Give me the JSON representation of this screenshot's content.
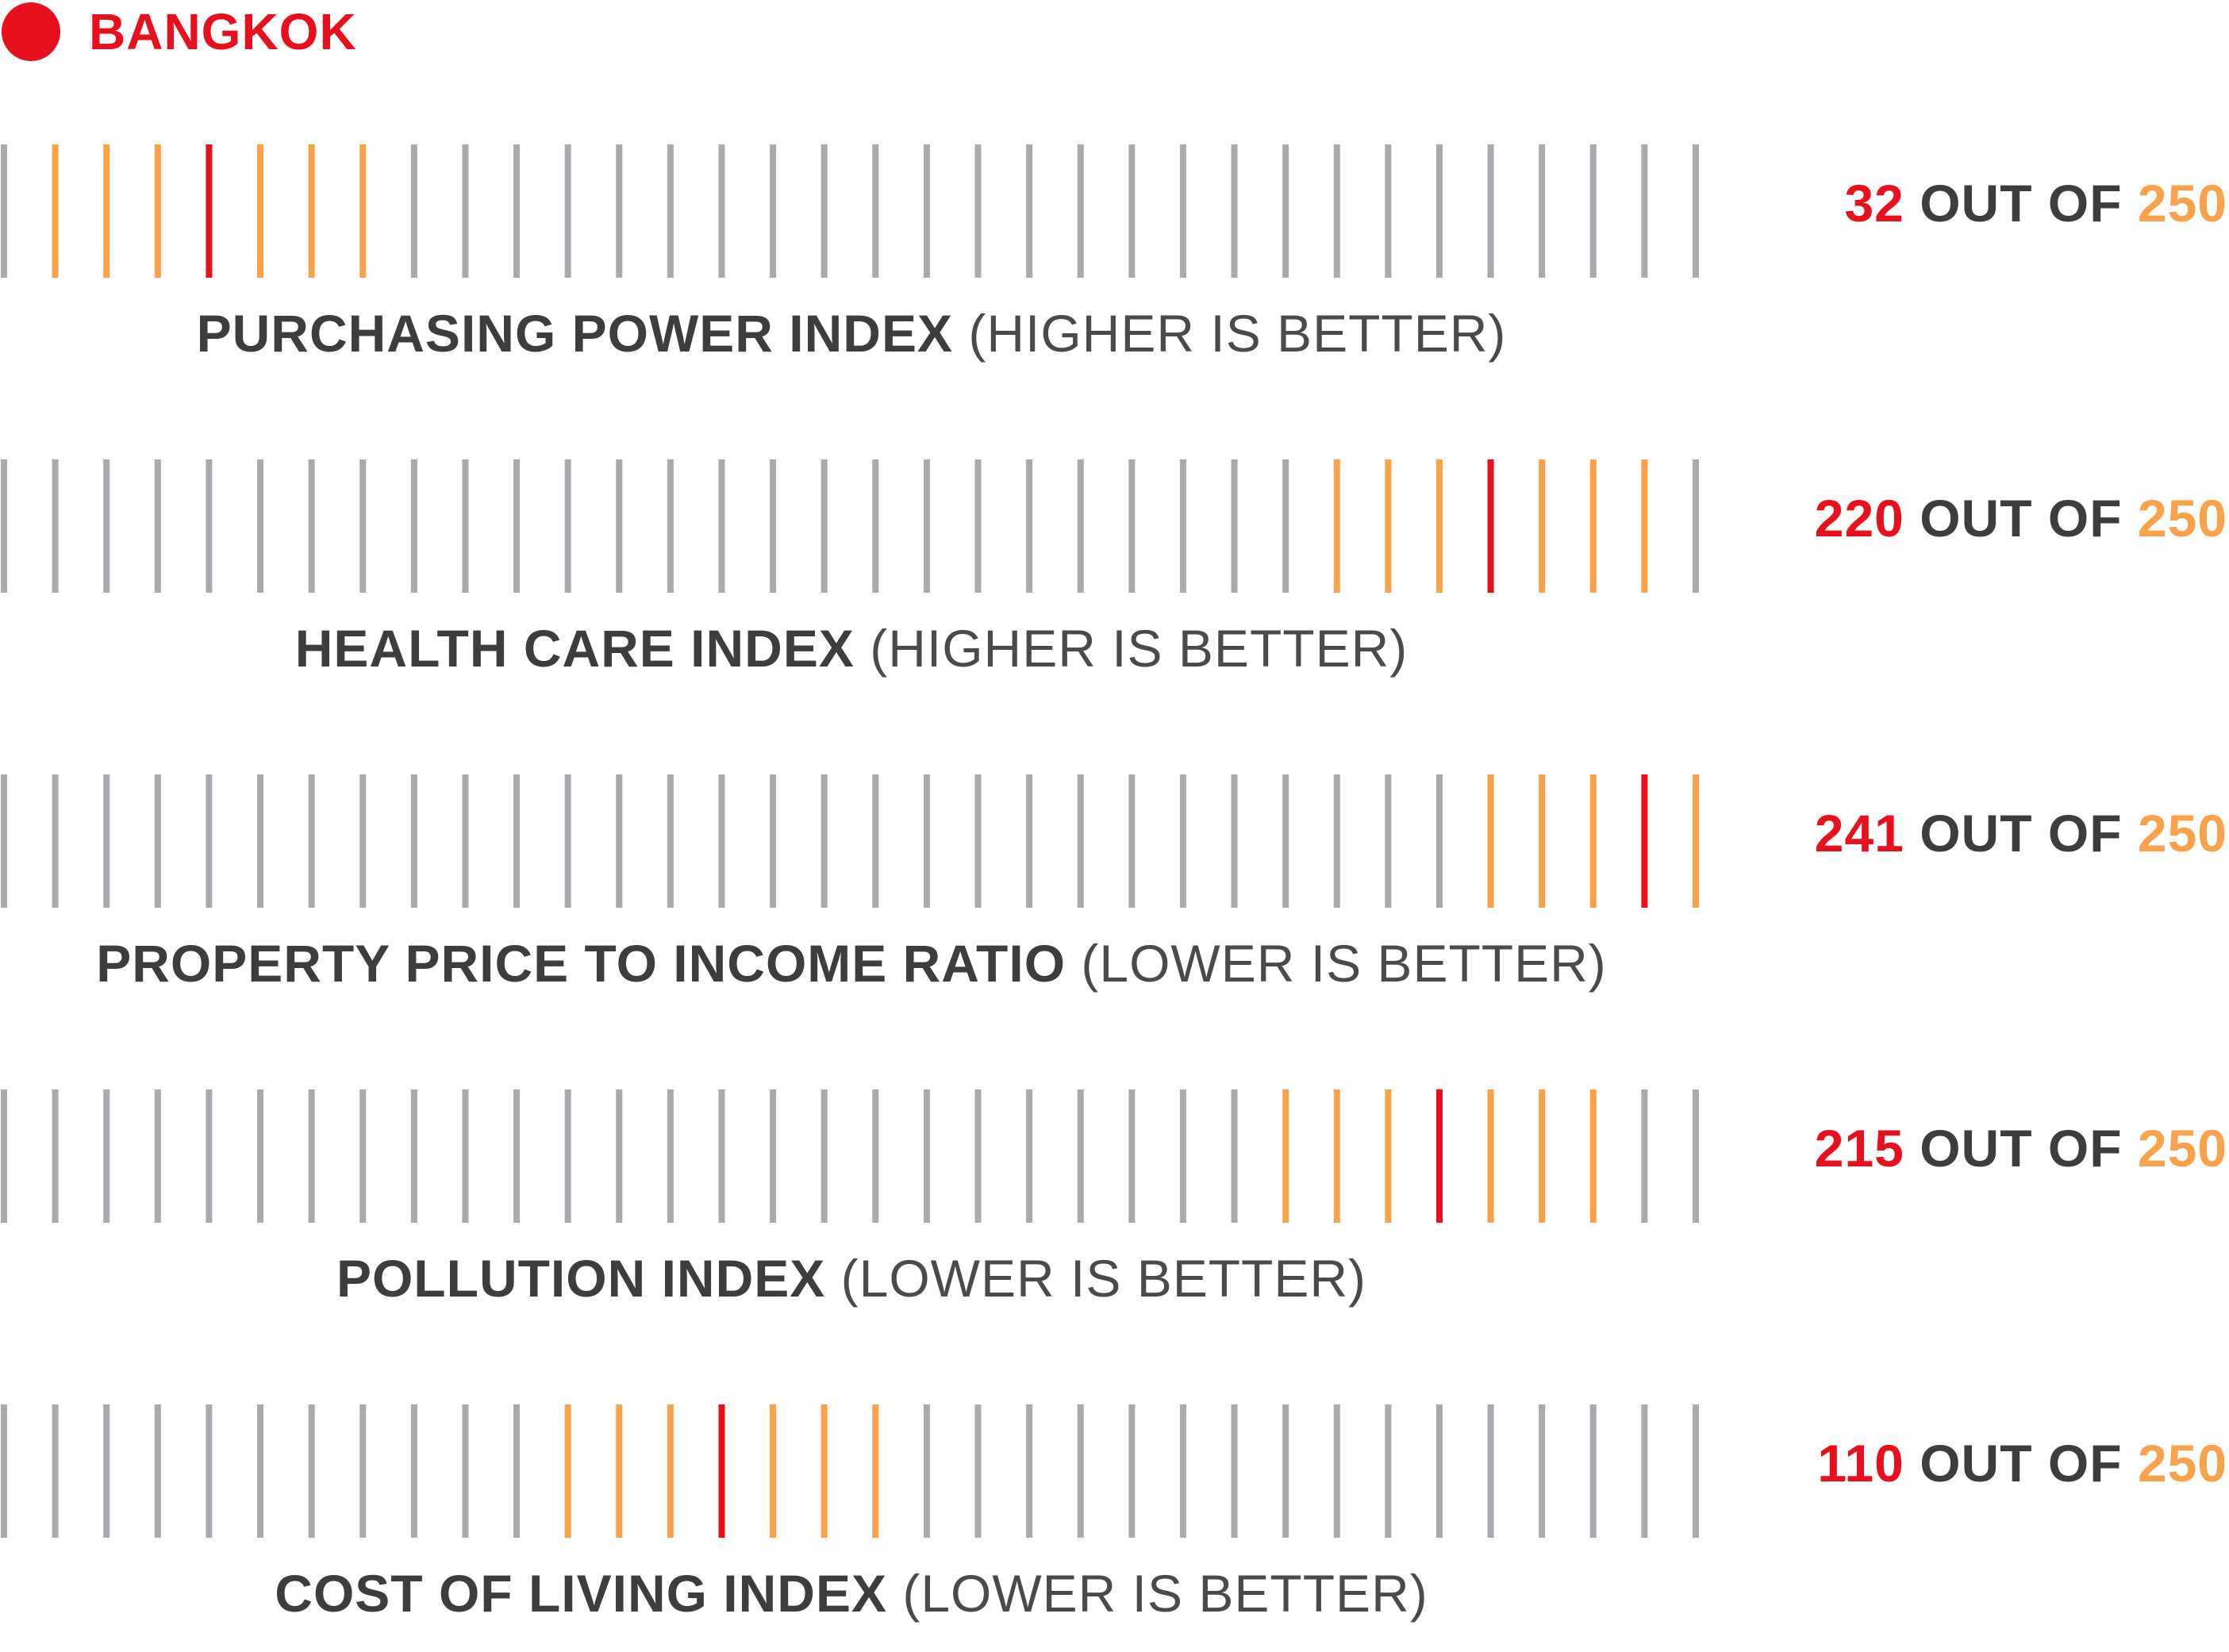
{
  "city": {
    "name": "BANGKOK"
  },
  "colors": {
    "tick_default": "#a9a9ae",
    "tick_neighborhood": "#f9a24b",
    "tick_highlight": "#e8101c",
    "label_dark": "#3d3d3f",
    "label_light": "#4a4a4c",
    "rank_value": "#e8101c",
    "rank_total": "#f9a24b"
  },
  "chart_data": {
    "type": "rank-strip",
    "total": 250,
    "tick_count": 34,
    "rows": [
      {
        "metric": "PURCHASING POWER INDEX",
        "note": "(HIGHER IS BETTER)",
        "rank": 32,
        "rank_text": "32",
        "mid_text": "OUT OF",
        "total_text": "250"
      },
      {
        "metric": "HEALTH CARE INDEX",
        "note": "(HIGHER IS BETTER)",
        "rank": 220,
        "rank_text": "220",
        "mid_text": "OUT OF",
        "total_text": "250"
      },
      {
        "metric": "PROPERTY PRICE TO INCOME RATIO",
        "note": "(LOWER IS BETTER)",
        "rank": 241,
        "rank_text": "241",
        "mid_text": "OUT OF",
        "total_text": "250"
      },
      {
        "metric": "POLLUTION INDEX",
        "note": "(LOWER IS BETTER)",
        "rank": 215,
        "rank_text": "215",
        "mid_text": "OUT OF",
        "total_text": "250"
      },
      {
        "metric": "COST OF LIVING INDEX",
        "note": "(LOWER IS BETTER)",
        "rank": 110,
        "rank_text": "110",
        "mid_text": "OUT OF",
        "total_text": "250"
      }
    ]
  }
}
